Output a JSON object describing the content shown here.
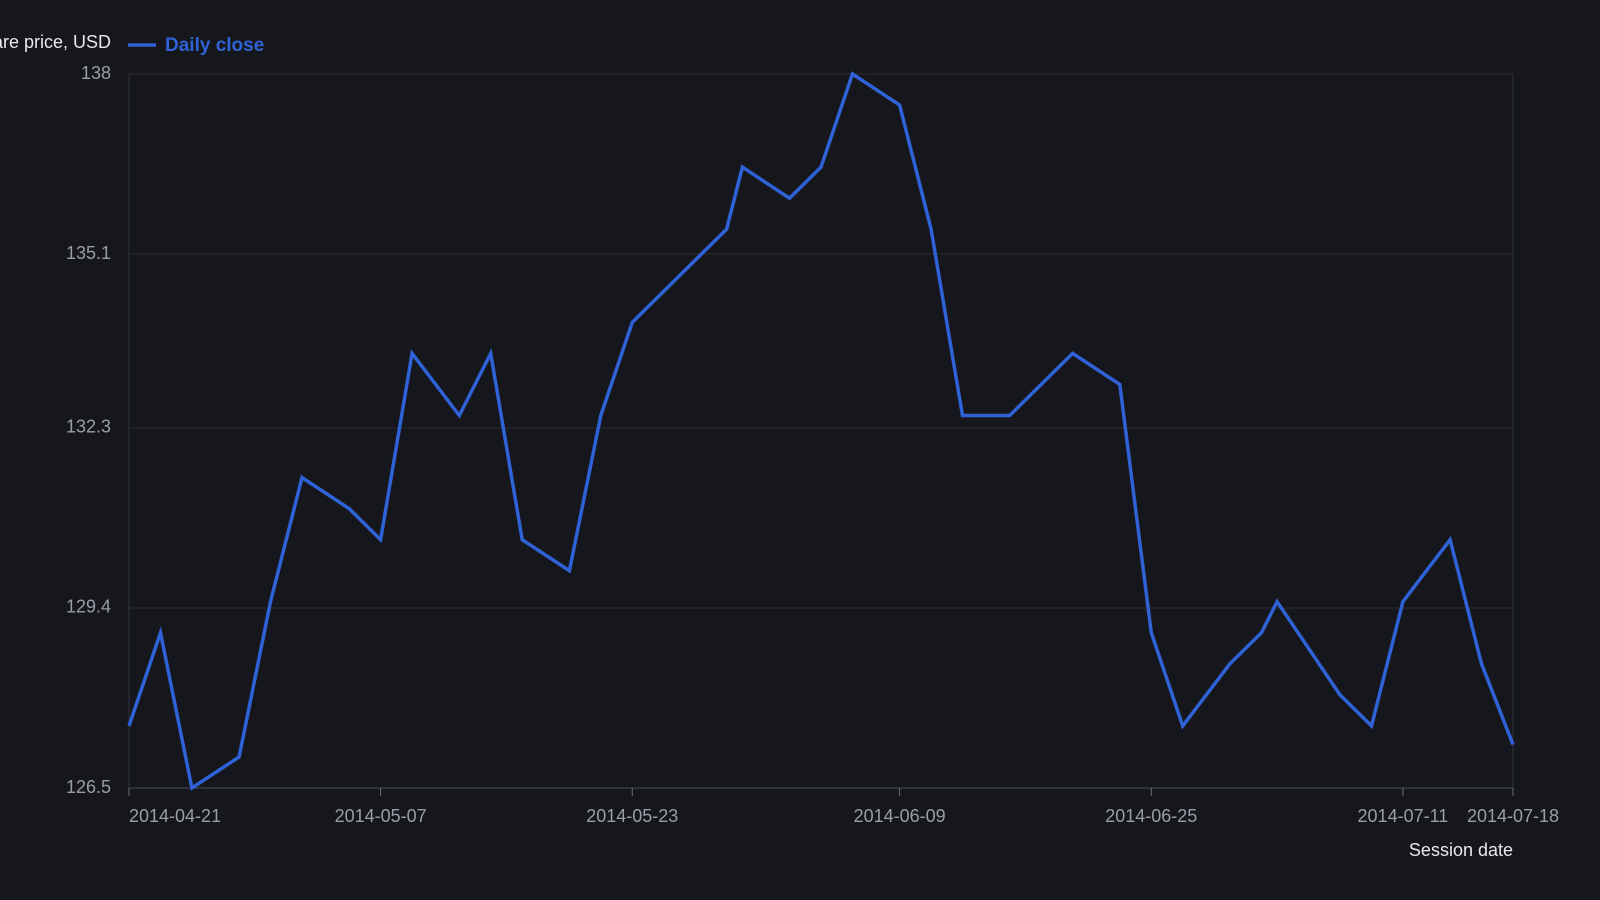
{
  "chart_data": {
    "type": "line",
    "y_label": "Share price, USD",
    "x_label": "Session date",
    "x": [
      "2014-04-21",
      "2014-04-23",
      "2014-04-25",
      "2014-04-28",
      "2014-04-30",
      "2014-05-02",
      "2014-05-05",
      "2014-05-07",
      "2014-05-09",
      "2014-05-12",
      "2014-05-14",
      "2014-05-16",
      "2014-05-19",
      "2014-05-21",
      "2014-05-23",
      "2014-05-29",
      "2014-05-30",
      "2014-06-02",
      "2014-06-04",
      "2014-06-06",
      "2014-06-09",
      "2014-06-11",
      "2014-06-13",
      "2014-06-16",
      "2014-06-20",
      "2014-06-23",
      "2014-06-25",
      "2014-06-27",
      "2014-06-30",
      "2014-07-02",
      "2014-07-03",
      "2014-07-07",
      "2014-07-09",
      "2014-07-11",
      "2014-07-14",
      "2014-07-16",
      "2014-07-18"
    ],
    "series": [
      {
        "name": "Daily close",
        "color": "#2f62d6",
        "values": [
          127.5,
          129.0,
          126.5,
          127.0,
          129.5,
          131.5,
          131.0,
          130.5,
          133.5,
          132.5,
          133.5,
          130.5,
          130.0,
          132.5,
          134.0,
          135.5,
          136.5,
          136.0,
          136.5,
          138.0,
          137.5,
          135.5,
          132.5,
          132.5,
          133.5,
          133.0,
          129.0,
          127.5,
          128.5,
          129.0,
          129.5,
          128.0,
          127.5,
          129.5,
          130.5,
          128.5,
          127.2
        ]
      }
    ],
    "xlim": [
      "2014-04-21",
      "2014-07-18"
    ],
    "xticks": [
      "2014-04-21",
      "2014-05-07",
      "2014-05-23",
      "2014-06-09",
      "2014-06-25",
      "2014-07-11",
      "2014-07-18"
    ],
    "ylim": [
      126.5,
      138
    ],
    "yticks": [
      126.5,
      129.4,
      132.3,
      135.1,
      138
    ],
    "grid": true
  }
}
